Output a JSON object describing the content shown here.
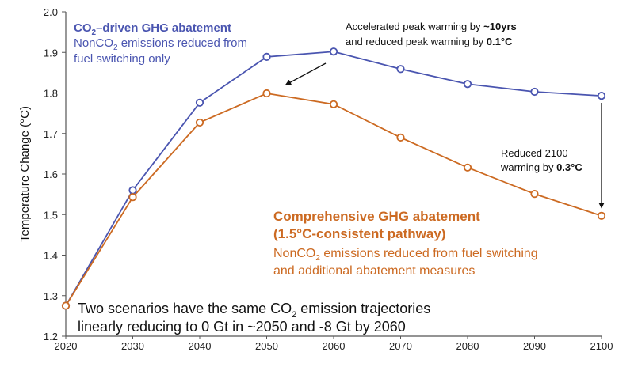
{
  "chart_data": {
    "type": "line",
    "ylabel": "Temperature Change (°C)",
    "xlabel": "",
    "x": [
      2020,
      2030,
      2040,
      2050,
      2060,
      2070,
      2080,
      2090,
      2100
    ],
    "xlim": [
      2020,
      2100
    ],
    "ylim": [
      1.2,
      2.0
    ],
    "x_ticks": [
      "2020",
      "2030",
      "2040",
      "2050",
      "2060",
      "2070",
      "2080",
      "2090",
      "2100"
    ],
    "y_ticks": [
      "1.2",
      "1.3",
      "1.4",
      "1.5",
      "1.6",
      "1.7",
      "1.8",
      "1.9",
      "2.0"
    ],
    "grid": false,
    "series": [
      {
        "name": "CO2–driven GHG abatement",
        "color": "#4a55b0",
        "values": [
          1.275,
          1.56,
          1.776,
          1.889,
          1.902,
          1.859,
          1.822,
          1.803,
          1.793
        ]
      },
      {
        "name": "Comprehensive GHG abatement (1.5°C-consistent pathway)",
        "color": "#cc6a22",
        "values": [
          1.275,
          1.543,
          1.727,
          1.799,
          1.772,
          1.69,
          1.616,
          1.551,
          1.497
        ]
      }
    ],
    "legend": {
      "blue_title_pre": "CO",
      "blue_title_sub": "2",
      "blue_title_post": "–driven GHG abatement",
      "blue_desc1_pre": "NonCO",
      "blue_desc1_sub": "2",
      "blue_desc1_post": " emissions reduced from",
      "blue_desc2": "fuel switching only",
      "orange_title1": "Comprehensive GHG abatement",
      "orange_title2": "(1.5°C-consistent pathway)",
      "orange_desc1_pre": "NonCO",
      "orange_desc1_sub": "2",
      "orange_desc1_post": " emissions reduced from fuel switching",
      "orange_desc2": "and additional abatement measures"
    },
    "annotations": {
      "peak_line1": "Accelerated peak warming by ",
      "peak_line1_bold": "~10yrs",
      "peak_line2": "and reduced peak warming by ",
      "peak_line2_bold": "0.1°C",
      "end_line1": "Reduced 2100",
      "end_line2": "warming by ",
      "end_line2_bold": "0.3°C",
      "note_line1_pre": "Two scenarios have the same CO",
      "note_line1_sub": "2",
      "note_line1_post": " emission trajectories",
      "note_line2": "linearly reducing to 0 Gt in ~2050 and -8 Gt by 2060"
    }
  }
}
